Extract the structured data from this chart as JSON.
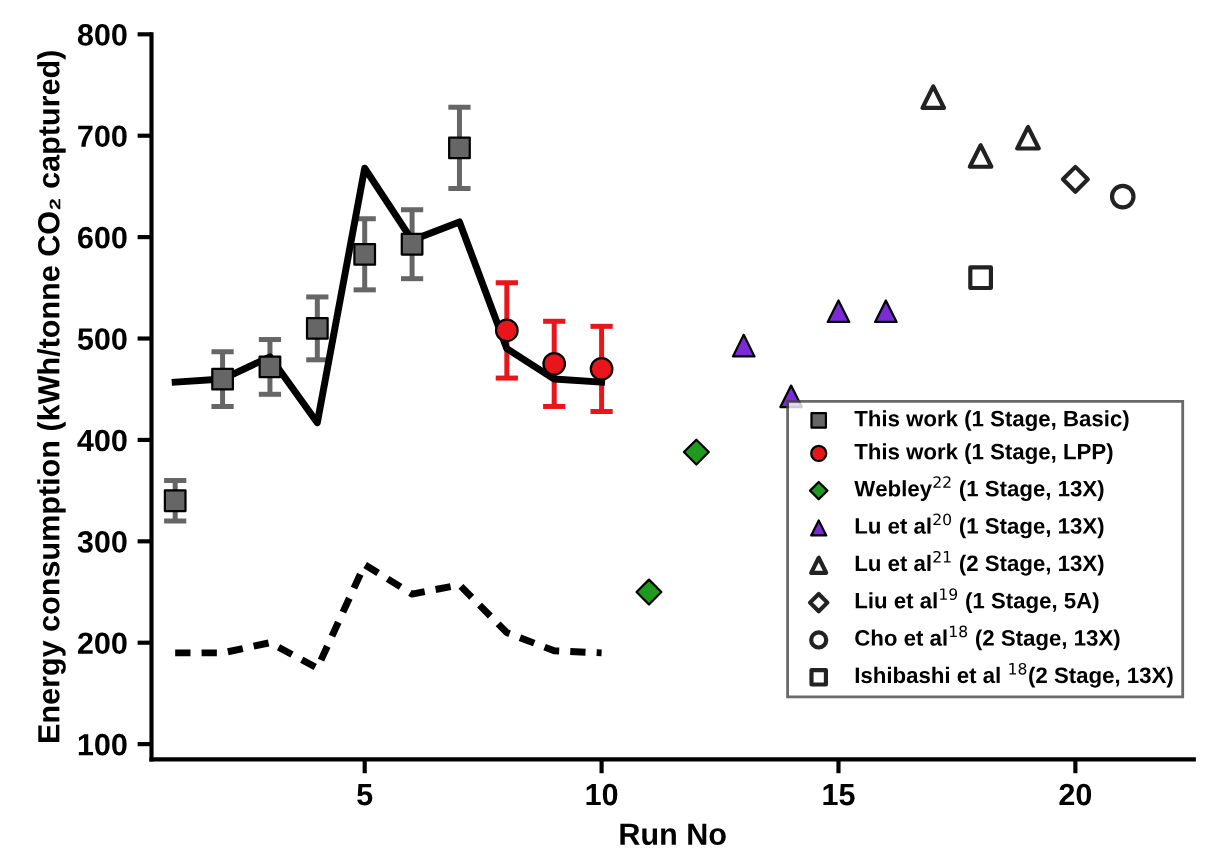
{
  "chart_data": {
    "type": "scatter",
    "xlabel": "Run No",
    "ylabel": "Energy consumption (kWh/tonne CO₂ captured)",
    "xlim": [
      0.5,
      22.5
    ],
    "ylim": [
      85,
      800
    ],
    "xticks": [
      5,
      10,
      15,
      20
    ],
    "yticks": [
      100,
      200,
      300,
      400,
      500,
      600,
      700,
      800
    ],
    "grid": false,
    "legend": "right",
    "series": [
      {
        "name": "This work (1 Stage, Basic)",
        "marker": "square",
        "color": "#666666",
        "x": [
          1,
          2,
          3,
          4,
          5,
          6,
          7
        ],
        "values": [
          340,
          460,
          472,
          510,
          583,
          593,
          688
        ],
        "errors": [
          20,
          27,
          27,
          31,
          35,
          34,
          40
        ]
      },
      {
        "name": "This work (1 Stage, LPP)",
        "marker": "circle",
        "color": "#e8161b",
        "x": [
          8,
          9,
          10
        ],
        "values": [
          508,
          475,
          470
        ],
        "errors": [
          47,
          42,
          42
        ]
      },
      {
        "name": "Webley$^{22}$ (1 Stage, 13X)",
        "marker": "diamond",
        "color": "#1e9a1e",
        "x": [
          11,
          12
        ],
        "values": [
          250,
          388
        ]
      },
      {
        "name": "Lu et al$^{20}$ (1 Stage, 13X)",
        "marker": "triangle",
        "color": "#7a2ad6",
        "x": [
          13,
          14,
          15,
          16
        ],
        "values": [
          493,
          443,
          527,
          527
        ]
      },
      {
        "name": "Lu et al$^{21}$ (2 Stage, 13X)",
        "marker": "triangle",
        "color": "#ffffff",
        "x": [
          17,
          18,
          19
        ],
        "values": [
          738,
          680,
          698
        ]
      },
      {
        "name": "Liu et al$^{19}$ (1 Stage, 5A)",
        "marker": "diamond",
        "color": "#ffffff",
        "x": [
          20
        ],
        "values": [
          657
        ]
      },
      {
        "name": "Cho et al$^{18}$ (2 Stage, 13X)",
        "marker": "circle",
        "color": "#ffffff",
        "x": [
          21
        ],
        "values": [
          640
        ]
      },
      {
        "name": "Ishibashi et al $^{18}$(2 Stage, 13X)",
        "marker": "square",
        "color": "#ffffff",
        "x": [
          18
        ],
        "values": [
          560
        ]
      },
      {
        "type": "line",
        "line_style": "solid",
        "marker": "none",
        "color": "#000000",
        "x": [
          1,
          2,
          3,
          4,
          5,
          6,
          7,
          8,
          9,
          10
        ],
        "values": [
          457,
          460,
          482,
          417,
          668,
          597,
          615,
          490,
          460,
          457
        ]
      },
      {
        "type": "line",
        "line_style": "dashed",
        "marker": "none",
        "color": "#000000",
        "x": [
          1,
          2,
          3,
          4,
          5,
          6,
          7,
          8,
          9,
          10
        ],
        "values": [
          190,
          190,
          200,
          175,
          277,
          248,
          257,
          210,
          192,
          190
        ]
      }
    ]
  }
}
